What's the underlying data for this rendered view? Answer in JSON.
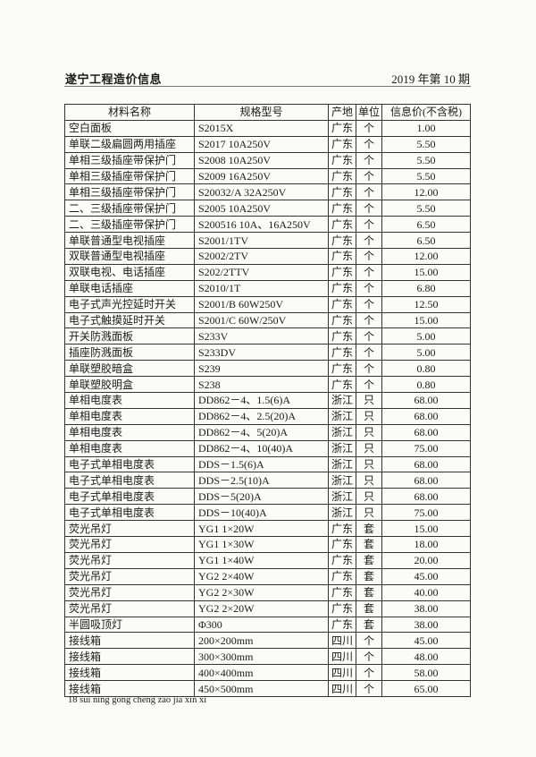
{
  "header": {
    "publication": "遂宁工程造价信息",
    "issue": "2019 年第 10 期"
  },
  "table": {
    "columns": [
      "材料名称",
      "规格型号",
      "产地",
      "单位",
      "信息价(不含税)"
    ],
    "rows": [
      [
        "空白面板",
        "S2015X",
        "广东",
        "个",
        "1.00"
      ],
      [
        "单联二级扁圆两用插座",
        "S2017 10A250V",
        "广东",
        "个",
        "5.50"
      ],
      [
        "单相三级插座带保护门",
        "S2008 10A250V",
        "广东",
        "个",
        "5.50"
      ],
      [
        "单相三级插座带保护门",
        "S2009 16A250V",
        "广东",
        "个",
        "5.50"
      ],
      [
        "单相三级插座带保护门",
        "S20032/A 32A250V",
        "广东",
        "个",
        "12.00"
      ],
      [
        "二、三级插座带保护门",
        "S2005 10A250V",
        "广东",
        "个",
        "5.50"
      ],
      [
        "二、三级插座带保护门",
        "S200516 10A、16A250V",
        "广东",
        "个",
        "6.50"
      ],
      [
        "单联普通型电视插座",
        "S2001/1TV",
        "广东",
        "个",
        "6.50"
      ],
      [
        "双联普通型电视插座",
        "S2002/2TV",
        "广东",
        "个",
        "12.00"
      ],
      [
        "双联电视、电话插座",
        "S202/2TTV",
        "广东",
        "个",
        "15.00"
      ],
      [
        "单联电话插座",
        "S2010/1T",
        "广东",
        "个",
        "6.80"
      ],
      [
        "电子式声光控延时开关",
        "S2001/B 60W250V",
        "广东",
        "个",
        "12.50"
      ],
      [
        "电子式触摸延时开关",
        "S2001/C 60W/250V",
        "广东",
        "个",
        "15.00"
      ],
      [
        "开关防溅面板",
        "S233V",
        "广东",
        "个",
        "5.00"
      ],
      [
        "插座防溅面板",
        "S233DV",
        "广东",
        "个",
        "5.00"
      ],
      [
        "单联塑胶暗盒",
        "S239",
        "广东",
        "个",
        "0.80"
      ],
      [
        "单联塑胶明盒",
        "S238",
        "广东",
        "个",
        "0.80"
      ],
      [
        "单相电度表",
        "DD862－4、1.5(6)A",
        "浙江",
        "只",
        "68.00"
      ],
      [
        "单相电度表",
        "DD862－4、2.5(20)A",
        "浙江",
        "只",
        "68.00"
      ],
      [
        "单相电度表",
        "DD862－4、5(20)A",
        "浙江",
        "只",
        "68.00"
      ],
      [
        "单相电度表",
        "DD862－4、10(40)A",
        "浙江",
        "只",
        "75.00"
      ],
      [
        "电子式单相电度表",
        "DDS－1.5(6)A",
        "浙江",
        "只",
        "68.00"
      ],
      [
        "电子式单相电度表",
        "DDS－2.5(10)A",
        "浙江",
        "只",
        "68.00"
      ],
      [
        "电子式单相电度表",
        "DDS－5(20)A",
        "浙江",
        "只",
        "68.00"
      ],
      [
        "电子式单相电度表",
        "DDS－10(40)A",
        "浙江",
        "只",
        "75.00"
      ],
      [
        "荧光吊灯",
        "YG1 1×20W",
        "广东",
        "套",
        "15.00"
      ],
      [
        "荧光吊灯",
        "YG1 1×30W",
        "广东",
        "套",
        "18.00"
      ],
      [
        "荧光吊灯",
        "YG1 1×40W",
        "广东",
        "套",
        "20.00"
      ],
      [
        "荧光吊灯",
        "YG2 2×40W",
        "广东",
        "套",
        "45.00"
      ],
      [
        "荧光吊灯",
        "YG2 2×30W",
        "广东",
        "套",
        "40.00"
      ],
      [
        "荧光吊灯",
        "YG2 2×20W",
        "广东",
        "套",
        "38.00"
      ],
      [
        "半圆吸顶灯",
        "Φ300",
        "广东",
        "套",
        "38.00"
      ],
      [
        "接线箱",
        "200×200mm",
        "四川",
        "个",
        "45.00"
      ],
      [
        "接线箱",
        "300×300mm",
        "四川",
        "个",
        "48.00"
      ],
      [
        "接线箱",
        "400×400mm",
        "四川",
        "个",
        "58.00"
      ],
      [
        "接线箱",
        "450×500mm",
        "四川",
        "个",
        "65.00"
      ]
    ]
  },
  "footer": {
    "text": "18 sui ning gong cheng zao jia xin xi"
  }
}
